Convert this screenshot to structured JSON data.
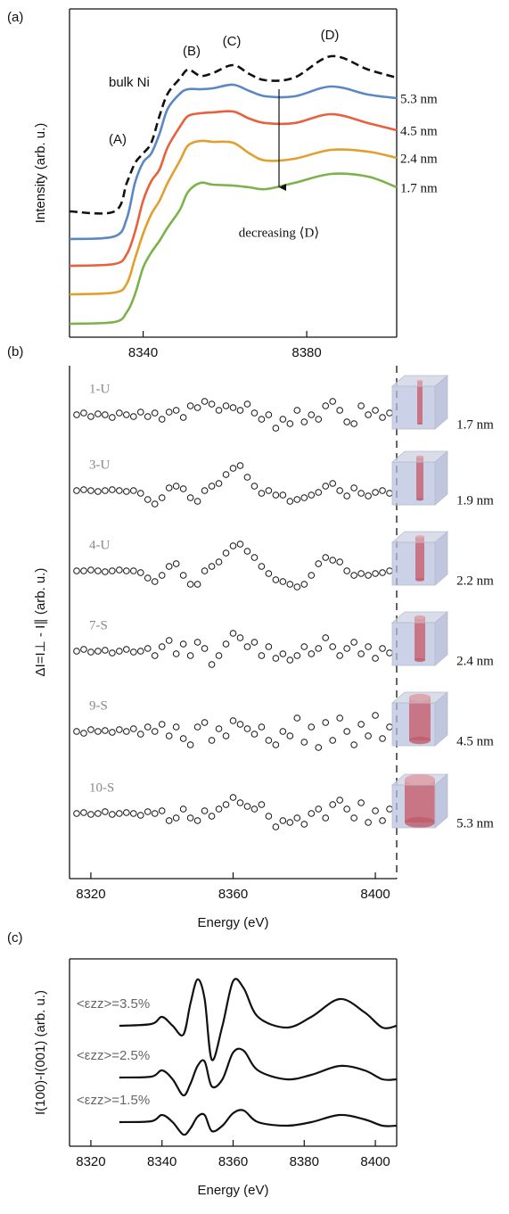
{
  "chart_data": [
    {
      "type": "line",
      "label": "(a)",
      "ylabel": "Intensity (arb. u.)",
      "x": [
        8322,
        8333,
        8336,
        8338,
        8340,
        8342,
        8344,
        8346,
        8349,
        8351,
        8354,
        8357,
        8362,
        8366,
        8370,
        8377,
        8386,
        8395,
        8402
      ],
      "xlim": [
        8322,
        8402
      ],
      "xticks": [
        8340,
        8380
      ],
      "ylim": [
        0,
        3.68
      ],
      "series": [
        {
          "name": "bulk Ni",
          "color": "#111111",
          "dash": true,
          "values": [
            1.41,
            1.41,
            1.73,
            1.95,
            2.06,
            2.18,
            2.48,
            2.73,
            2.9,
            3.0,
            2.93,
            2.96,
            3.05,
            2.95,
            2.88,
            2.91,
            3.15,
            3.0,
            2.91
          ]
        },
        {
          "name": "5.3 nm",
          "color": "#5b87c5",
          "values": [
            1.1,
            1.13,
            1.33,
            1.73,
            1.96,
            2.06,
            2.28,
            2.56,
            2.73,
            2.78,
            2.78,
            2.79,
            2.83,
            2.76,
            2.7,
            2.7,
            2.81,
            2.72,
            2.68
          ]
        },
        {
          "name": "4.5 nm",
          "color": "#e8603c",
          "values": [
            0.8,
            0.82,
            0.93,
            1.18,
            1.53,
            1.75,
            1.88,
            2.13,
            2.36,
            2.48,
            2.51,
            2.52,
            2.53,
            2.45,
            2.4,
            2.4,
            2.5,
            2.4,
            2.32
          ]
        },
        {
          "name": "2.4 nm",
          "color": "#e39f2e",
          "values": [
            0.48,
            0.5,
            0.6,
            0.88,
            1.16,
            1.38,
            1.53,
            1.73,
            1.98,
            2.15,
            2.2,
            2.19,
            2.18,
            2.06,
            1.98,
            2.0,
            2.1,
            2.08,
            2.01
          ]
        },
        {
          "name": "1.7 nm",
          "color": "#7cb24a",
          "values": [
            0.15,
            0.17,
            0.28,
            0.48,
            0.78,
            0.95,
            1.08,
            1.23,
            1.43,
            1.63,
            1.73,
            1.71,
            1.7,
            1.68,
            1.66,
            1.73,
            1.83,
            1.8,
            1.68
          ]
        }
      ],
      "annotations": [
        "(A)",
        "(B)",
        "(C)",
        "(D)",
        "decreasing ⟨D⟩"
      ]
    },
    {
      "type": "scatter",
      "label": "(b)",
      "xlabel": "Energy (eV)",
      "ylabel": "ΔI=I⊥ - I∥ (arb. u.)",
      "x": [
        8316,
        8318,
        8320,
        8322,
        8324,
        8326,
        8328,
        8330,
        8332,
        8334,
        8336,
        8338,
        8340,
        8342,
        8344,
        8346,
        8348,
        8350,
        8352,
        8354,
        8356,
        8358,
        8360,
        8362,
        8364,
        8366,
        8368,
        8370,
        8372,
        8374,
        8376,
        8378,
        8380,
        8382,
        8384,
        8386,
        8388,
        8390,
        8392,
        8394,
        8396,
        8398,
        8400,
        8402,
        8404
      ],
      "xlim": [
        8314,
        8406
      ],
      "xticks": [
        8320,
        8360,
        8400
      ],
      "ylim": [
        -0.2,
        5.55
      ],
      "series": [
        {
          "name": "1-U",
          "size": "1.7 nm",
          "values": [
            5.0,
            5.02,
            4.98,
            5.01,
            5.0,
            4.97,
            5.02,
            5.0,
            4.98,
            5.03,
            4.98,
            5.02,
            4.95,
            5.03,
            5.05,
            4.97,
            5.1,
            5.08,
            5.15,
            5.12,
            5.05,
            5.1,
            5.08,
            5.05,
            5.12,
            5.02,
            4.95,
            5.0,
            4.85,
            4.95,
            4.9,
            5.05,
            4.92,
            5.0,
            4.95,
            5.1,
            5.15,
            5.05,
            4.92,
            4.9,
            5.1,
            5.0,
            5.05,
            4.97,
            5.02
          ]
        },
        {
          "name": "3-U",
          "size": "1.9 nm",
          "values": [
            4.15,
            4.16,
            4.15,
            4.14,
            4.15,
            4.16,
            4.15,
            4.14,
            4.15,
            4.12,
            4.05,
            4.0,
            4.07,
            4.18,
            4.2,
            4.17,
            4.07,
            4.03,
            4.15,
            4.2,
            4.23,
            4.33,
            4.4,
            4.43,
            4.3,
            4.2,
            4.12,
            4.15,
            4.1,
            4.1,
            4.03,
            4.05,
            4.07,
            4.1,
            4.13,
            4.2,
            4.23,
            4.15,
            4.09,
            4.18,
            4.12,
            4.09,
            4.13,
            4.15,
            4.12
          ]
        },
        {
          "name": "4-U",
          "size": "2.2 nm",
          "values": [
            3.25,
            3.25,
            3.26,
            3.25,
            3.24,
            3.25,
            3.26,
            3.25,
            3.25,
            3.23,
            3.17,
            3.13,
            3.2,
            3.3,
            3.33,
            3.2,
            3.1,
            3.1,
            3.25,
            3.3,
            3.35,
            3.45,
            3.53,
            3.55,
            3.47,
            3.4,
            3.3,
            3.22,
            3.15,
            3.13,
            3.1,
            3.07,
            3.1,
            3.2,
            3.33,
            3.4,
            3.37,
            3.35,
            3.25,
            3.2,
            3.22,
            3.2,
            3.22,
            3.23,
            3.25
          ]
        },
        {
          "name": "7-S",
          "size": "2.4 nm",
          "values": [
            2.35,
            2.37,
            2.34,
            2.35,
            2.36,
            2.33,
            2.35,
            2.37,
            2.34,
            2.35,
            2.38,
            2.3,
            2.4,
            2.47,
            2.32,
            2.43,
            2.3,
            2.45,
            2.38,
            2.2,
            2.3,
            2.43,
            2.55,
            2.5,
            2.4,
            2.45,
            2.3,
            2.4,
            2.27,
            2.32,
            2.25,
            2.3,
            2.4,
            2.32,
            2.38,
            2.5,
            2.4,
            2.3,
            2.38,
            2.45,
            2.32,
            2.4,
            2.27,
            2.38,
            2.33
          ]
        },
        {
          "name": "9-S",
          "size": "4.5 nm",
          "values": [
            1.45,
            1.43,
            1.47,
            1.45,
            1.46,
            1.44,
            1.47,
            1.45,
            1.48,
            1.42,
            1.5,
            1.45,
            1.53,
            1.4,
            1.5,
            1.37,
            1.3,
            1.5,
            1.55,
            1.35,
            1.48,
            1.4,
            1.57,
            1.53,
            1.48,
            1.42,
            1.5,
            1.35,
            1.3,
            1.45,
            1.4,
            1.6,
            1.33,
            1.5,
            1.27,
            1.55,
            1.35,
            1.6,
            1.45,
            1.3,
            1.53,
            1.4,
            1.63,
            1.37,
            1.5
          ]
        },
        {
          "name": "10-S",
          "size": "5.3 nm",
          "values": [
            0.53,
            0.54,
            0.52,
            0.53,
            0.55,
            0.52,
            0.53,
            0.54,
            0.53,
            0.51,
            0.55,
            0.53,
            0.56,
            0.45,
            0.48,
            0.58,
            0.48,
            0.45,
            0.56,
            0.5,
            0.58,
            0.63,
            0.71,
            0.65,
            0.61,
            0.58,
            0.63,
            0.5,
            0.38,
            0.45,
            0.43,
            0.48,
            0.41,
            0.53,
            0.58,
            0.48,
            0.63,
            0.68,
            0.58,
            0.48,
            0.65,
            0.43,
            0.56,
            0.45,
            0.58
          ]
        }
      ]
    },
    {
      "type": "line",
      "label": "(c)",
      "xlabel": "Energy (eV)",
      "ylabel": "I(100)-I(001) (arb. u.)",
      "x": [
        8328,
        8337,
        8340,
        8343,
        8346,
        8348,
        8350,
        8352,
        8354,
        8357,
        8360,
        8363,
        8367,
        8375,
        8382,
        8390,
        8397,
        8402,
        8406
      ],
      "xlim": [
        8314,
        8406
      ],
      "xticks": [
        8320,
        8340,
        8360,
        8380,
        8400
      ],
      "ylim": [
        0,
        2.1
      ],
      "series": [
        {
          "name": "<εzz>=3.5%",
          "color": "#111111",
          "values": [
            1.35,
            1.37,
            1.45,
            1.35,
            1.25,
            1.6,
            1.87,
            1.65,
            0.97,
            1.35,
            1.85,
            1.77,
            1.45,
            1.33,
            1.45,
            1.65,
            1.5,
            1.33,
            1.35
          ]
        },
        {
          "name": "<εzz>=2.5%",
          "color": "#111111",
          "values": [
            0.77,
            0.78,
            0.85,
            0.75,
            0.57,
            0.7,
            0.9,
            0.95,
            0.67,
            0.75,
            1.05,
            1.07,
            0.85,
            0.75,
            0.8,
            0.9,
            0.85,
            0.75,
            0.75
          ]
        },
        {
          "name": "<εzz>=1.5%",
          "color": "#111111",
          "values": [
            0.27,
            0.28,
            0.35,
            0.27,
            0.13,
            0.2,
            0.33,
            0.35,
            0.17,
            0.23,
            0.37,
            0.4,
            0.27,
            0.23,
            0.27,
            0.35,
            0.3,
            0.23,
            0.23
          ]
        }
      ]
    }
  ]
}
